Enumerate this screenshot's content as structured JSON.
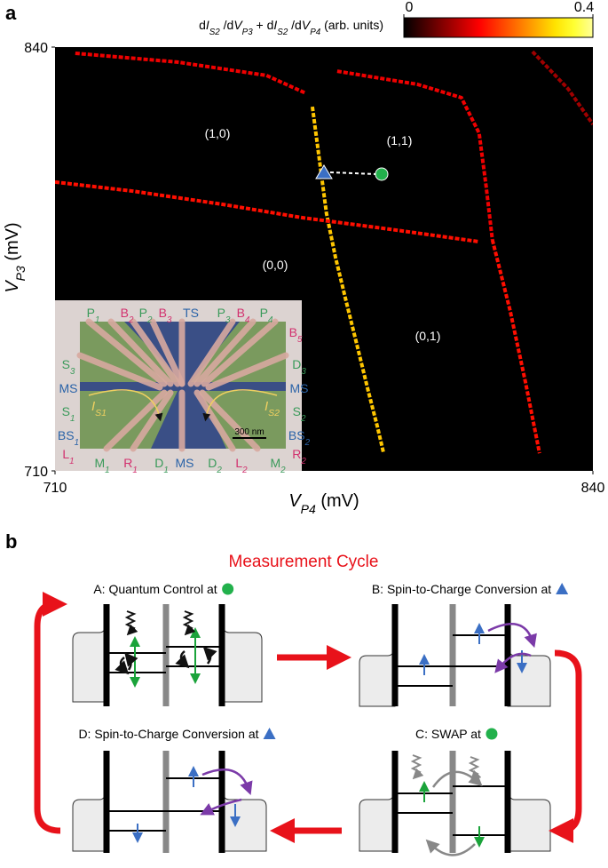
{
  "panel_a_label": "a",
  "panel_b_label": "b",
  "chart_data": {
    "type": "heatmap",
    "colormap": "hot",
    "colorbar_label": [
      {
        "text": "d"
      },
      {
        "text": "I",
        "style": "italic"
      },
      {
        "text": "S2",
        "style": "sub"
      },
      {
        "text": " /d"
      },
      {
        "text": "V",
        "style": "italic"
      },
      {
        "text": "P3",
        "style": "sub"
      },
      {
        "text": " + d"
      },
      {
        "text": "I",
        "style": "italic"
      },
      {
        "text": "S2",
        "style": "sub"
      },
      {
        "text": " /d"
      },
      {
        "text": "V",
        "style": "italic"
      },
      {
        "text": "P4",
        "style": "sub"
      },
      {
        "text": " (arb. units)"
      }
    ],
    "clim": [
      0,
      0.4
    ],
    "cticks": [
      0,
      0.4
    ],
    "xlabel": [
      {
        "text": "V",
        "style": "italic"
      },
      {
        "text": "P4",
        "style": "sub"
      },
      {
        "text": " (mV)"
      }
    ],
    "ylabel": [
      {
        "text": "V",
        "style": "italic"
      },
      {
        "text": "P3",
        "style": "sub"
      },
      {
        "text": " (mV)"
      }
    ],
    "xlim": [
      710,
      840
    ],
    "ylim": [
      710,
      840
    ],
    "xticks": [
      710,
      840
    ],
    "yticks": [
      710,
      840
    ],
    "lines": [
      {
        "x": [
          714.9,
          739.6,
          761.1,
          770.7
        ],
        "y": [
          838.1,
          835.4,
          831.3,
          825.8
        ],
        "value": 0.15
      },
      {
        "x": [
          772.2,
          773.9,
          775.6,
          777.8,
          780.4,
          783.6,
          785.7,
          787.9,
          789.4
        ],
        "y": [
          821.7,
          805.4,
          789.0,
          775.4,
          761.8,
          745.4,
          734.5,
          723.6,
          715.5
        ],
        "value": 0.3
      },
      {
        "x": [
          710.0,
          728.9,
          750.3,
          769.6,
          791.1,
          812.5
        ],
        "y": [
          798.6,
          795.8,
          791.8,
          787.7,
          784.1,
          780.3
        ],
        "value": 0.17
      },
      {
        "x": [
          778.2,
          797.5,
          808.2,
          812.5,
          814.2,
          815.7
        ],
        "y": [
          832.6,
          828.6,
          824.5,
          813.6,
          797.2,
          780.9
        ],
        "value": 0.15
      },
      {
        "x": [
          815.7,
          820.0,
          823.7,
          827.1
        ],
        "y": [
          780.9,
          759.1,
          737.2,
          715.4
        ],
        "value": 0.17
      },
      {
        "x": [
          825.4,
          834.0,
          840.0
        ],
        "y": [
          838.6,
          827.2,
          816.3
        ],
        "value": 0.1
      }
    ],
    "regions": [
      "(1,0)",
      "(1,1)",
      "(0,0)",
      "(0,1)"
    ]
  },
  "inset": {
    "top": [
      [
        {
          "text": "P"
        },
        {
          "text": "1",
          "style": "sub"
        }
      ],
      [
        {
          "text": "B"
        },
        {
          "text": "2",
          "style": "sub"
        }
      ],
      [
        {
          "text": "P"
        },
        {
          "text": "2",
          "style": "sub"
        }
      ],
      [
        {
          "text": "B"
        },
        {
          "text": "3",
          "style": "sub"
        }
      ],
      [
        {
          "text": "TS"
        }
      ],
      [
        {
          "text": "P"
        },
        {
          "text": "3",
          "style": "sub"
        }
      ],
      [
        {
          "text": "B"
        },
        {
          "text": "4",
          "style": "sub"
        }
      ],
      [
        {
          "text": "P"
        },
        {
          "text": "4",
          "style": "sub"
        }
      ],
      [
        {
          "text": "B"
        },
        {
          "text": "5",
          "style": "sub"
        }
      ]
    ],
    "left": [
      [
        {
          "text": "S"
        },
        {
          "text": "3",
          "style": "sub"
        }
      ],
      [
        {
          "text": "MS"
        }
      ],
      [
        {
          "text": "S"
        },
        {
          "text": "1",
          "style": "sub"
        }
      ],
      [
        {
          "text": "BS"
        },
        {
          "text": "1",
          "style": "sub"
        }
      ],
      [
        {
          "text": "L"
        },
        {
          "text": "1",
          "style": "sub"
        }
      ]
    ],
    "right": [
      [
        {
          "text": "D"
        },
        {
          "text": "3",
          "style": "sub"
        }
      ],
      [
        {
          "text": "MS"
        }
      ],
      [
        {
          "text": "S"
        },
        {
          "text": "2",
          "style": "sub"
        }
      ],
      [
        {
          "text": "BS"
        },
        {
          "text": "2",
          "style": "sub"
        }
      ],
      [
        {
          "text": "R"
        },
        {
          "text": "2",
          "style": "sub"
        }
      ]
    ],
    "bottom": [
      [
        {
          "text": "M"
        },
        {
          "text": "1",
          "style": "sub"
        }
      ],
      [
        {
          "text": "R"
        },
        {
          "text": "1",
          "style": "sub"
        }
      ],
      [
        {
          "text": "D"
        },
        {
          "text": "1",
          "style": "sub"
        }
      ],
      [
        {
          "text": "MS"
        }
      ],
      [
        {
          "text": "D"
        },
        {
          "text": "2",
          "style": "sub"
        }
      ],
      [
        {
          "text": "L"
        },
        {
          "text": "2",
          "style": "sub"
        }
      ],
      [
        {
          "text": "M"
        },
        {
          "text": "2",
          "style": "sub"
        }
      ]
    ],
    "currents": [
      [
        {
          "text": "I",
          "style": "italic"
        },
        {
          "text": "S1",
          "style": "sub"
        }
      ],
      [
        {
          "text": "I",
          "style": "italic"
        },
        {
          "text": "S2",
          "style": "sub"
        }
      ]
    ],
    "scale_bar": "300 nm"
  },
  "cycle": {
    "title": "Measurement Cycle",
    "panels": [
      "A: Quantum Control at",
      "B: Spin-to-Charge Conversion at",
      "C: SWAP at",
      "D: Spin-to-Charge Conversion at"
    ]
  }
}
